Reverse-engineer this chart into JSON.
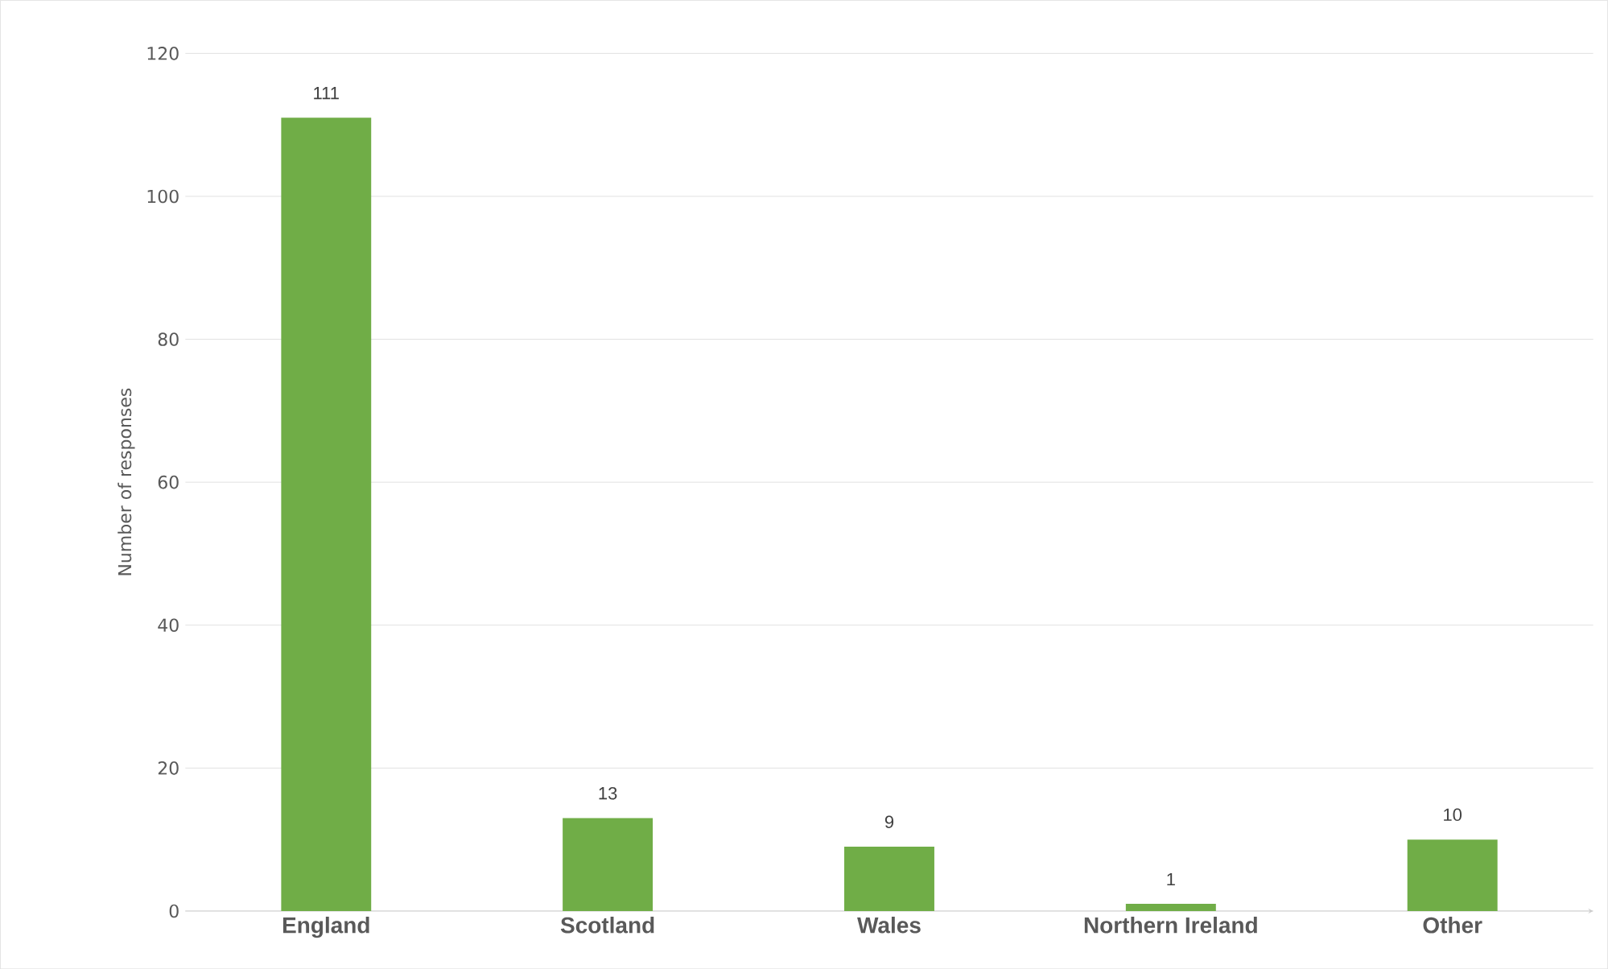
{
  "chart_data": {
    "type": "bar",
    "ylabel": "Number of responses",
    "categories": [
      "England",
      "Scotland",
      "Wales",
      "Northern Ireland",
      "Other"
    ],
    "values": [
      111,
      13,
      9,
      1,
      10
    ],
    "color": "#70ad47",
    "ylim": [
      0,
      120
    ],
    "yticks": [
      0,
      20,
      40,
      60,
      80,
      100,
      120
    ],
    "grid": "y",
    "data_labels": true
  }
}
